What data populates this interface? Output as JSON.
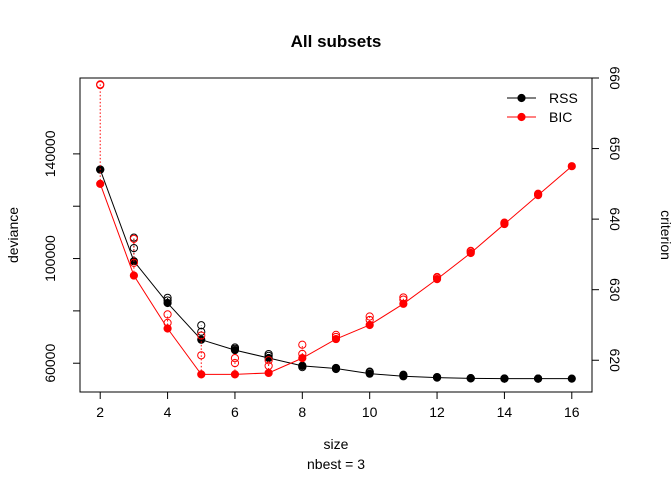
{
  "chart_data": {
    "type": "line",
    "title": "All subsets",
    "xlabel": "size",
    "xlabel_sub": "nbest =  3",
    "ylabel_left": "deviance",
    "ylabel_right": "criterion",
    "x_ticks": [
      2,
      4,
      6,
      8,
      10,
      12,
      14,
      16
    ],
    "y_left_ticks": [
      60000,
      100000,
      140000
    ],
    "y_right_ticks": [
      620,
      630,
      640,
      650,
      660
    ],
    "xlim": [
      1.4,
      16.6
    ],
    "ylim_left": [
      49000,
      169000
    ],
    "ylim_right": [
      615.5,
      660
    ],
    "legend_position": "top-right",
    "grid": false,
    "colors": {
      "rss": "#000000",
      "bic": "#ff0000"
    },
    "legend": [
      {
        "label": "RSS",
        "color": "#000000"
      },
      {
        "label": "BIC",
        "color": "#ff0000"
      }
    ],
    "series": [
      {
        "name": "RSS",
        "axis": "left",
        "x": [
          2,
          3,
          4,
          5,
          6,
          7,
          8,
          9,
          10,
          11,
          12,
          13,
          14,
          15,
          16
        ],
        "best": [
          134000,
          99000,
          83000,
          69000,
          65000,
          62000,
          59000,
          58000,
          56000,
          55000,
          54500,
          54200,
          54100,
          54100,
          54100
        ],
        "others": [
          [
            2,
            134000
          ],
          [
            3,
            104000
          ],
          [
            3,
            108000
          ],
          [
            4,
            85000
          ],
          [
            4,
            84000
          ],
          [
            5,
            72000
          ],
          [
            5,
            74500
          ],
          [
            6,
            66000
          ],
          [
            6,
            65500
          ],
          [
            7,
            62800
          ],
          [
            7,
            63500
          ],
          [
            8,
            59000
          ],
          [
            8,
            58500
          ],
          [
            9,
            58200
          ],
          [
            9,
            57800
          ],
          [
            10,
            56800
          ],
          [
            10,
            56500
          ],
          [
            11,
            55600
          ],
          [
            11,
            55300
          ],
          [
            12,
            54700
          ],
          [
            12,
            54600
          ],
          [
            13,
            54300
          ],
          [
            13,
            54250
          ],
          [
            14,
            54150
          ],
          [
            14,
            54120
          ],
          [
            15,
            54110
          ],
          [
            15,
            54105
          ]
        ]
      },
      {
        "name": "BIC",
        "axis": "right",
        "x": [
          2,
          3,
          4,
          5,
          6,
          7,
          8,
          9,
          10,
          11,
          12,
          13,
          14,
          15,
          16
        ],
        "best": [
          645,
          632,
          624.5,
          618,
          618,
          618.2,
          620.3,
          623,
          625,
          628,
          631.5,
          635.2,
          639.3,
          643.4,
          647.5
        ],
        "others": [
          [
            2,
            659
          ],
          [
            2,
            659.1
          ],
          [
            3,
            633.8
          ],
          [
            3,
            637.2
          ],
          [
            4,
            625.3
          ],
          [
            4,
            626.5
          ],
          [
            5,
            623.5
          ],
          [
            5,
            620.7
          ],
          [
            6,
            619.6
          ],
          [
            6,
            620.3
          ],
          [
            7,
            619.2
          ],
          [
            7,
            620
          ],
          [
            8,
            620.9
          ],
          [
            8,
            622.2
          ],
          [
            9,
            623.3
          ],
          [
            9,
            623.6
          ],
          [
            10,
            625.7
          ],
          [
            10,
            626.2
          ],
          [
            11,
            628.6
          ],
          [
            11,
            628.9
          ],
          [
            12,
            631.7
          ],
          [
            12,
            631.8
          ],
          [
            13,
            635.4
          ],
          [
            13,
            635.5
          ],
          [
            14,
            639.4
          ],
          [
            14,
            639.5
          ],
          [
            15,
            643.5
          ],
          [
            15,
            643.6
          ]
        ]
      }
    ]
  }
}
